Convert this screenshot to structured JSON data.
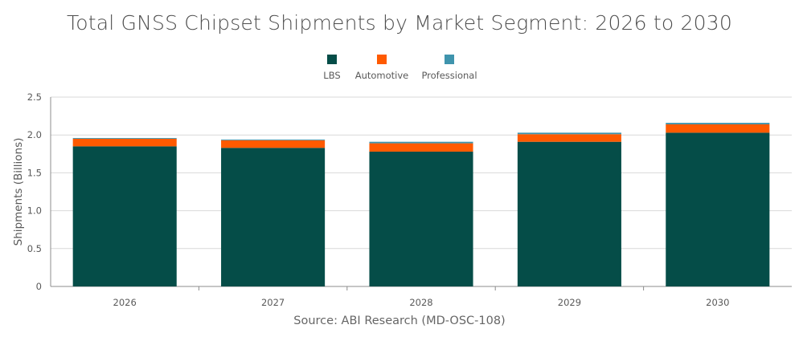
{
  "chart_data": {
    "type": "bar",
    "stacked": true,
    "title": "Total GNSS Chipset Shipments by Market Segment: 2026 to 2030",
    "ylabel": "Shipments (Billions)",
    "xlabel": "",
    "categories": [
      "2026",
      "2027",
      "2028",
      "2029",
      "2030"
    ],
    "series": [
      {
        "name": "LBS",
        "color": "#054d48",
        "values": [
          1.85,
          1.83,
          1.78,
          1.91,
          2.03
        ]
      },
      {
        "name": "Automotive",
        "color": "#ff5a00",
        "values": [
          0.1,
          0.1,
          0.11,
          0.1,
          0.11
        ]
      },
      {
        "name": "Professional",
        "color": "#3f94ad",
        "values": [
          0.01,
          0.01,
          0.02,
          0.02,
          0.02
        ]
      }
    ],
    "ylim": [
      0,
      2.5
    ],
    "yticks": [
      "0",
      "0.5",
      "1.0",
      "1.5",
      "2.0",
      "2.5"
    ],
    "grid": true,
    "legend_position": "top"
  },
  "source": "Source: ABI Research (MD-OSC-108)"
}
